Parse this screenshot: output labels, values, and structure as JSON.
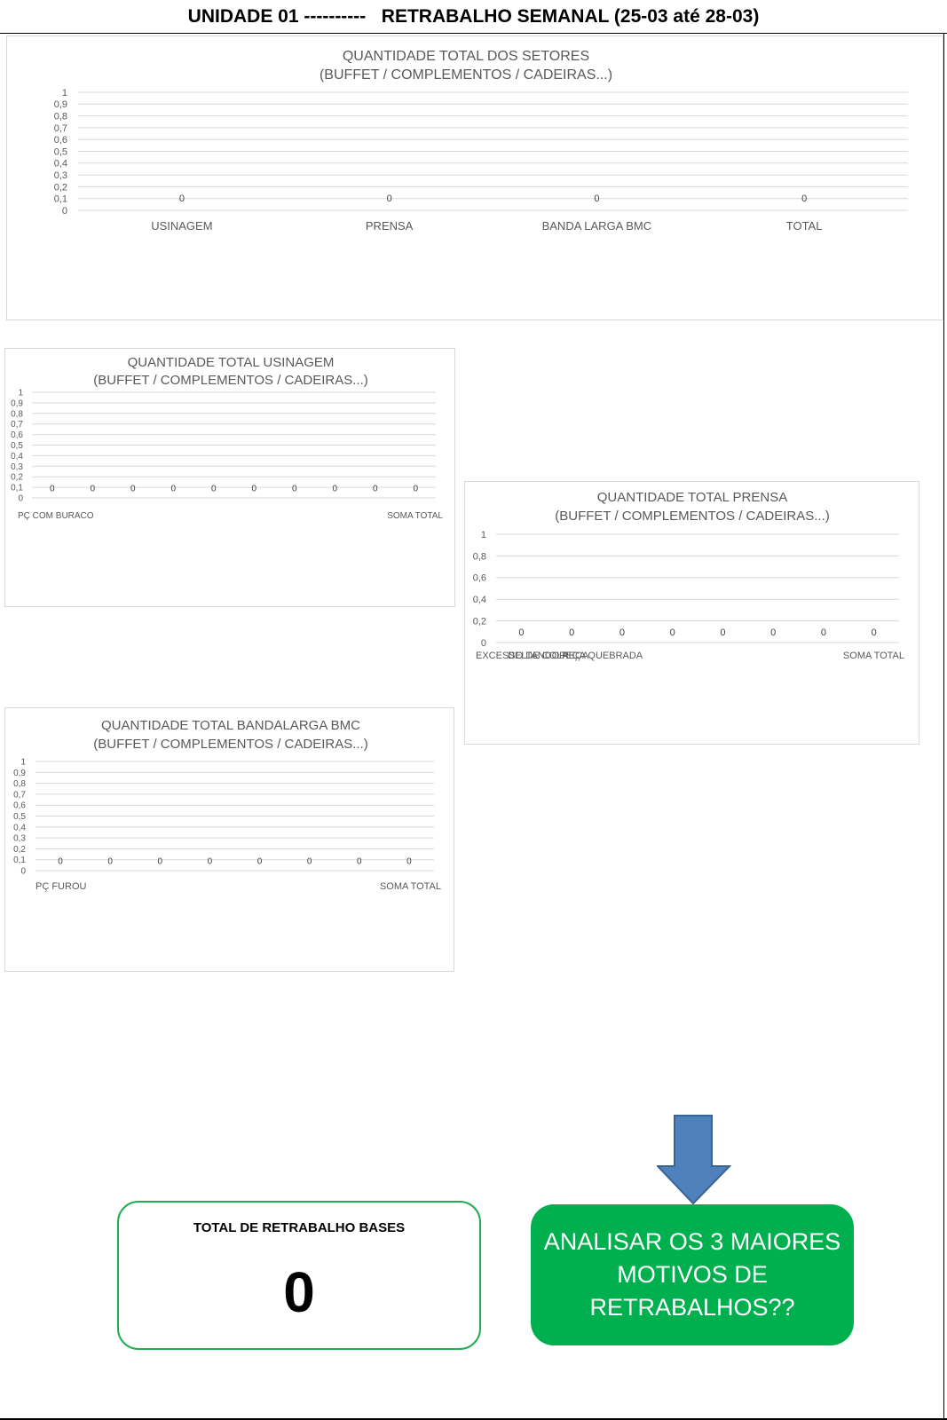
{
  "header": {
    "title": "UNIDADE 01 ----------   RETRABALHO SEMANAL (25-03 até 28-03)"
  },
  "colors": {
    "accent_green": "#00b04f",
    "border_green": "#1fae52",
    "arrow_blue": "#4f81bd",
    "grid": "#d9d9d9",
    "label_text": "#595959"
  },
  "chart_data": [
    {
      "id": "setores",
      "type": "bar",
      "title": "QUANTIDADE TOTAL  DOS SETORES",
      "subtitle": "(BUFFET / COMPLEMENTOS / CADEIRAS...)",
      "categories": [
        "USINAGEM",
        "PRENSA",
        "BANDA LARGA BMC",
        "TOTAL"
      ],
      "values": [
        0,
        0,
        0,
        0
      ],
      "data_labels": [
        "0",
        "0",
        "0",
        "0"
      ],
      "yticks": [
        "0",
        "0,1",
        "0,2",
        "0,3",
        "0,4",
        "0,5",
        "0,6",
        "0,7",
        "0,8",
        "0,9",
        "1"
      ],
      "ylim": [
        0,
        1
      ],
      "grid": true
    },
    {
      "id": "usinagem",
      "type": "bar",
      "title": "QUANTIDADE TOTAL USINAGEM",
      "subtitle": "(BUFFET / COMPLEMENTOS / CADEIRAS...)",
      "values": [
        0,
        0,
        0,
        0,
        0,
        0,
        0,
        0,
        0,
        0
      ],
      "data_labels": [
        "0",
        "0",
        "0",
        "0",
        "0",
        "0",
        "0",
        "0",
        "0",
        "0"
      ],
      "visible_category_labels": [
        "PÇ COM BURACO",
        "SOMA TOTAL"
      ],
      "yticks": [
        "0",
        "0,1",
        "0,2",
        "0,3",
        "0,4",
        "0,5",
        "0,6",
        "0,7",
        "0,8",
        "0,9",
        "1"
      ],
      "ylim": [
        0,
        1
      ],
      "grid": true
    },
    {
      "id": "prensa",
      "type": "bar",
      "title": "QUANTIDADE TOTAL PRENSA",
      "subtitle": "(BUFFET / COMPLEMENTOS / CADEIRAS...)",
      "values": [
        0,
        0,
        0,
        0,
        0,
        0,
        0,
        0
      ],
      "data_labels": [
        "0",
        "0",
        "0",
        "0",
        "0",
        "0",
        "0",
        "0"
      ],
      "visible_category_labels": [
        "EXCESSO DE COLA",
        "DELTANDO PEÇA",
        "PEÇA QUEBRADA",
        "SOMA TOTAL"
      ],
      "yticks": [
        "0",
        "0,2",
        "0,4",
        "0,6",
        "0,8",
        "1"
      ],
      "ylim": [
        0,
        1
      ],
      "grid": true
    },
    {
      "id": "bandalarga",
      "type": "bar",
      "title": "QUANTIDADE TOTAL BANDALARGA BMC",
      "subtitle": "(BUFFET / COMPLEMENTOS / CADEIRAS...)",
      "values": [
        0,
        0,
        0,
        0,
        0,
        0,
        0,
        0
      ],
      "data_labels": [
        "0",
        "0",
        "0",
        "0",
        "0",
        "0",
        "0",
        "0"
      ],
      "visible_category_labels": [
        "PÇ FUROU",
        "SOMA TOTAL"
      ],
      "yticks": [
        "0",
        "0,1",
        "0,2",
        "0,3",
        "0,4",
        "0,5",
        "0,6",
        "0,7",
        "0,8",
        "0,9",
        "1"
      ],
      "ylim": [
        0,
        1
      ],
      "grid": true
    }
  ],
  "summary": {
    "total_label": "TOTAL DE RETRABALHO BASES",
    "total_value": "0",
    "action_text": "ANALISAR OS 3 MAIORES MOTIVOS DE RETRABALHOS??"
  }
}
